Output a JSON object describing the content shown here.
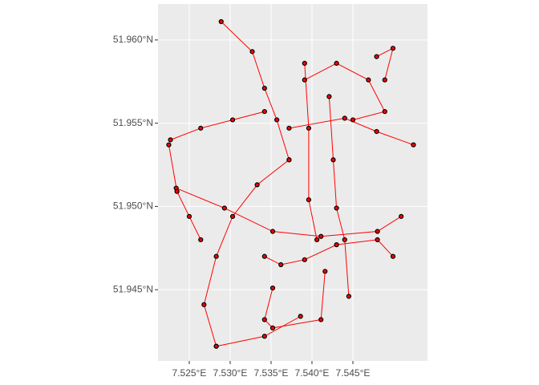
{
  "chart_data": {
    "type": "map",
    "xlim": [
      7.52118,
      7.55412
    ],
    "ylim": [
      51.94072,
      51.96216
    ],
    "xticks": [
      {
        "value": 7.525,
        "label": "7.525°E"
      },
      {
        "value": 7.53,
        "label": "7.530°E"
      },
      {
        "value": 7.535,
        "label": "7.535°E"
      },
      {
        "value": 7.54,
        "label": "7.540°E"
      },
      {
        "value": 7.545,
        "label": "7.545°E"
      }
    ],
    "yticks": [
      {
        "value": 51.945,
        "label": "51.945°N"
      },
      {
        "value": 51.95,
        "label": "51.950°N"
      },
      {
        "value": 51.955,
        "label": "51.955°N"
      },
      {
        "value": 51.96,
        "label": "51.960°N"
      }
    ],
    "grid": true,
    "line_color": "#ff0000",
    "point_color": "#000000",
    "series": [
      {
        "x": [
          7.5289,
          7.5327,
          7.5342,
          7.5357,
          7.5372
        ],
        "y": [
          51.9611,
          51.9593,
          51.9571,
          51.9552,
          51.9528
        ]
      },
      {
        "x": [
          7.5372,
          7.544,
          7.5479,
          7.5524
        ],
        "y": [
          51.9547,
          51.9553,
          51.9545,
          51.9537
        ]
      },
      {
        "x": [
          7.5227,
          7.5264,
          7.5303,
          7.5342
        ],
        "y": [
          51.954,
          51.9547,
          51.9552,
          51.9557
        ]
      },
      {
        "x": [
          7.5372,
          7.5333,
          7.5303,
          7.5283,
          7.5268,
          7.5283
        ],
        "y": [
          51.9528,
          51.9513,
          51.9494,
          51.947,
          51.9441,
          51.9416
        ]
      },
      {
        "x": [
          7.5234,
          7.5293,
          7.5352,
          7.5411,
          7.548,
          7.5509
        ],
        "y": [
          51.9511,
          51.9499,
          51.9485,
          51.9482,
          51.9485,
          51.9494
        ]
      },
      {
        "x": [
          7.5342,
          7.5362,
          7.5391,
          7.543,
          7.548,
          7.5499
        ],
        "y": [
          51.947,
          51.9465,
          51.9468,
          51.9477,
          51.948,
          51.947
        ]
      },
      {
        "x": [
          7.5352,
          7.5342,
          7.5352,
          7.5411,
          7.5416
        ],
        "y": [
          51.9451,
          51.9432,
          51.9427,
          51.9432,
          51.9461
        ]
      },
      {
        "x": [
          7.5283,
          7.5342,
          7.5386
        ],
        "y": [
          51.9416,
          51.9422,
          51.9434
        ]
      },
      {
        "x": [
          7.5391,
          7.543,
          7.5469,
          7.5489,
          7.545
        ],
        "y": [
          51.9576,
          51.9586,
          51.9576,
          51.9557,
          51.9552
        ]
      },
      {
        "x": [
          7.5421,
          7.5426,
          7.543,
          7.544,
          7.5445
        ],
        "y": [
          51.9566,
          51.9528,
          51.9499,
          51.948,
          51.9446
        ]
      },
      {
        "x": [
          7.5391,
          7.5396,
          7.5396,
          7.5406
        ],
        "y": [
          51.9586,
          51.9547,
          51.9504,
          51.948
        ]
      },
      {
        "x": [
          7.5225,
          7.5235,
          7.525,
          7.5264
        ],
        "y": [
          51.9537,
          51.9509,
          51.9494,
          51.948
        ]
      },
      {
        "x": [
          7.5479,
          7.5499,
          7.5489
        ],
        "y": [
          51.959,
          51.9595,
          51.9576
        ]
      }
    ]
  }
}
